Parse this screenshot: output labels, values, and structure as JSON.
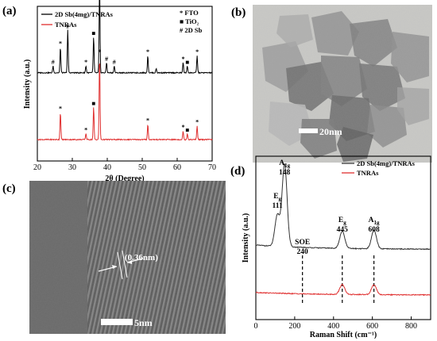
{
  "panels": {
    "a": {
      "letter": "(a)"
    },
    "b": {
      "letter": "(b)",
      "scale_bar": "20nm"
    },
    "c": {
      "letter": "(c)",
      "scale_bar": "5nm",
      "d_spacing": "(0.36nm)"
    },
    "d": {
      "letter": "(d)"
    }
  },
  "chart_data": [
    {
      "type": "line",
      "panel": "a",
      "xlabel": "2θ (Degree)",
      "ylabel": "Intensity (a.u.)",
      "xlim": [
        20,
        70
      ],
      "xticks": [
        20,
        30,
        40,
        50,
        60,
        70
      ],
      "y_ticks_labeled": false,
      "grid": false,
      "legend_position": "top-left",
      "series": [
        {
          "name": "2D Sb(4mg)/TNRAs",
          "color": "#000000",
          "baseline": 0.78,
          "peaks": [
            {
              "x": 24.5,
              "h": 0.08,
              "marker": "#"
            },
            {
              "x": 26.6,
              "h": 0.3,
              "marker": "*"
            },
            {
              "x": 28.7,
              "h": 0.5,
              "marker": "#"
            },
            {
              "x": 33.9,
              "h": 0.08,
              "marker": "*"
            },
            {
              "x": 36.1,
              "h": 0.42,
              "marker": "■"
            },
            {
              "x": 37.8,
              "h": 1.0,
              "marker": "*"
            },
            {
              "x": 39.8,
              "h": 0.12,
              "marker": "#"
            },
            {
              "x": 42.0,
              "h": 0.08,
              "marker": "#"
            },
            {
              "x": 51.6,
              "h": 0.2,
              "marker": "*"
            },
            {
              "x": 54.0,
              "h": 0.05,
              "marker": ""
            },
            {
              "x": 61.7,
              "h": 0.12,
              "marker": "*"
            },
            {
              "x": 62.9,
              "h": 0.08,
              "marker": "■"
            },
            {
              "x": 65.7,
              "h": 0.2,
              "marker": "*"
            }
          ]
        },
        {
          "name": "TNRAs",
          "color": "#e03030",
          "baseline": 0.0,
          "peaks": [
            {
              "x": 26.6,
              "h": 0.32,
              "marker": "*"
            },
            {
              "x": 33.9,
              "h": 0.07,
              "marker": "*"
            },
            {
              "x": 36.1,
              "h": 0.38,
              "marker": "■"
            },
            {
              "x": 37.8,
              "h": 0.98,
              "marker": "*"
            },
            {
              "x": 51.6,
              "h": 0.18,
              "marker": "*"
            },
            {
              "x": 61.7,
              "h": 0.1,
              "marker": "*"
            },
            {
              "x": 62.9,
              "h": 0.07,
              "marker": "■"
            },
            {
              "x": 65.7,
              "h": 0.16,
              "marker": "*"
            }
          ]
        }
      ],
      "marker_legend": [
        {
          "symbol": "*",
          "label": "FTO"
        },
        {
          "symbol": "■",
          "label": "TiO₂"
        },
        {
          "symbol": "#",
          "label": "2D Sb"
        }
      ]
    },
    {
      "type": "line",
      "panel": "d",
      "xlabel": "Raman Shift  (cm⁻¹)",
      "ylabel": "Intensity (a.u.)",
      "xlim": [
        0,
        900
      ],
      "xticks": [
        0,
        200,
        400,
        600,
        800
      ],
      "y_ticks_labeled": false,
      "grid": false,
      "legend_position": "top-right",
      "series": [
        {
          "name": "2D Sb(4mg)/TNRAs",
          "color": "#333333",
          "baseline": 0.42,
          "peaks": [
            {
              "x": 111,
              "h": 0.22
            },
            {
              "x": 148,
              "h": 0.58
            },
            {
              "x": 445,
              "h": 0.12
            },
            {
              "x": 608,
              "h": 0.13
            }
          ]
        },
        {
          "name": "TNRAs",
          "color": "#e03030",
          "baseline": 0.1,
          "peaks": [
            {
              "x": 445,
              "h": 0.07
            },
            {
              "x": 608,
              "h": 0.07
            }
          ]
        }
      ],
      "peak_labels": [
        {
          "x": 111,
          "mode": "E",
          "sub": "g",
          "value": "111"
        },
        {
          "x": 148,
          "mode": "A",
          "sub": "1g",
          "value": "148"
        },
        {
          "x": 240,
          "mode": "SOE",
          "sub": "",
          "value": "240"
        },
        {
          "x": 445,
          "mode": "E",
          "sub": "g",
          "value": "445"
        },
        {
          "x": 608,
          "mode": "A",
          "sub": "1g",
          "value": "608"
        }
      ],
      "dashed_lines_at": [
        240,
        445,
        608
      ]
    }
  ]
}
